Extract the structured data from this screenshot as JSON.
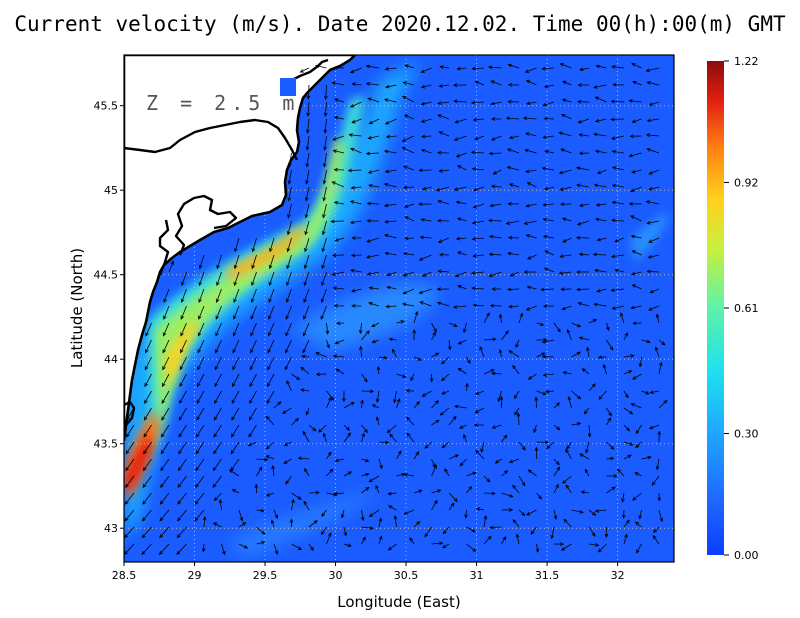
{
  "title": "Current velocity (m/s). Date 2020.12.02. Time 00(h):00(m) GMT",
  "depth_label": "Z = 2.5 m",
  "xlabel": "Longitude (East)",
  "ylabel": "Latitude (North)",
  "colors": {
    "ocean_background": "#1a5cff",
    "land": "#ffffff",
    "coastline": "#000000",
    "grid": "#b9b9b9"
  },
  "chart_data": {
    "type": "heatmap",
    "title": "Current velocity (m/s). Date 2020.12.02. Time 00(h):00(m) GMT",
    "xlabel": "Longitude (East)",
    "ylabel": "Latitude (North)",
    "xlim": [
      28.5,
      32.4
    ],
    "ylim": [
      42.8,
      45.8
    ],
    "x_ticks": [
      "28.5",
      "29",
      "29.5",
      "30",
      "30.5",
      "31",
      "31.5",
      "32"
    ],
    "y_ticks": [
      "43",
      "43.5",
      "44",
      "44.5",
      "45",
      "45.5"
    ],
    "grid": true,
    "colorbar": {
      "min": 0.0,
      "max": 1.22,
      "tick_labels": [
        "1.22",
        "0.92",
        "0.61",
        "0.30",
        "0.00"
      ],
      "tick_values": [
        1.22,
        0.92,
        0.61,
        0.3,
        0.0
      ],
      "placement": "right"
    }
  }
}
